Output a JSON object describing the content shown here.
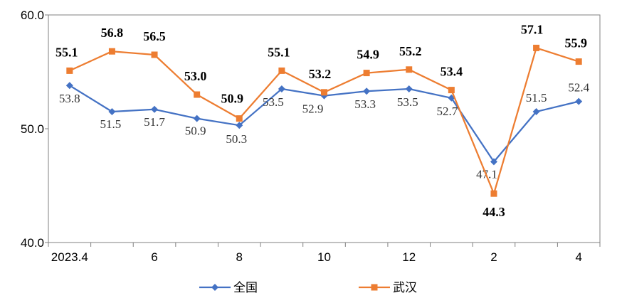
{
  "chart_data": {
    "type": "line",
    "x_tick_labels": [
      "2023.4",
      "",
      "6",
      "",
      "8",
      "",
      "10",
      "",
      "12",
      "",
      "2",
      "",
      "4"
    ],
    "y_ticks": [
      "40.0",
      "50.0",
      "60.0"
    ],
    "ylim": [
      40,
      60
    ],
    "grid": false,
    "legend_position": "bottom",
    "series": [
      {
        "name": "全国",
        "color": "#4472C4",
        "marker": "diamond",
        "values": [
          53.8,
          51.5,
          51.7,
          50.9,
          50.3,
          53.5,
          52.9,
          53.3,
          53.5,
          52.7,
          47.1,
          51.5,
          52.4
        ],
        "labels": [
          "53.8",
          "51.5",
          "51.7",
          "50.9",
          "50.3",
          "53.5",
          "52.9",
          "53.3",
          "53.5",
          "52.7",
          "47.1",
          "51.5",
          "52.4"
        ]
      },
      {
        "name": "武汉",
        "color": "#ED7D31",
        "marker": "square",
        "values": [
          55.1,
          56.8,
          56.5,
          53.0,
          50.9,
          55.1,
          53.2,
          54.9,
          55.2,
          53.4,
          44.3,
          57.1,
          55.9
        ],
        "labels": [
          "55.1",
          "56.8",
          "56.5",
          "53.0",
          "50.9",
          "55.1",
          "53.2",
          "54.9",
          "55.2",
          "53.4",
          "44.3",
          "57.1",
          "55.9"
        ]
      }
    ]
  }
}
